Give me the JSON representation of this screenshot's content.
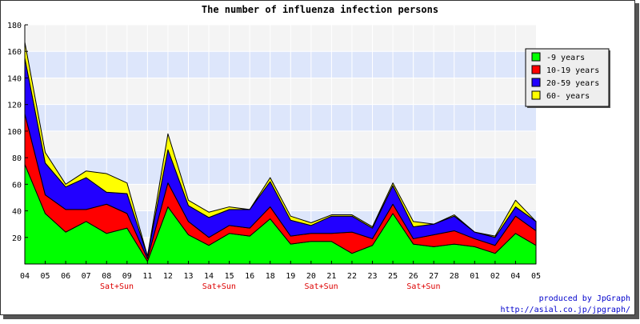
{
  "chart_data": {
    "type": "area",
    "stacked": true,
    "title": "The number of influenza infection persons",
    "xlabel": "",
    "ylabel": "",
    "ylim": [
      0,
      180
    ],
    "yticks": [
      20,
      40,
      60,
      80,
      100,
      120,
      140,
      160,
      180
    ],
    "grid": true,
    "legend_position": "top-right",
    "categories": [
      "04",
      "05",
      "06",
      "07",
      "08",
      "09",
      "11",
      "12",
      "13",
      "14",
      "15",
      "16",
      "18",
      "19",
      "20",
      "21",
      "22",
      "23",
      "25",
      "26",
      "27",
      "28",
      "01",
      "02",
      "04",
      "05"
    ],
    "weekend_labels": [
      {
        "index": 4,
        "label": "Sat+Sun"
      },
      {
        "index": 9,
        "label": "Sat+Sun"
      },
      {
        "index": 14,
        "label": "Sat+Sun"
      },
      {
        "index": 19,
        "label": "Sat+Sun"
      }
    ],
    "series": [
      {
        "name": "-9 years",
        "color": "#00ff00",
        "values": [
          75,
          38,
          24,
          32,
          23,
          27,
          2,
          43,
          22,
          14,
          23,
          21,
          34,
          15,
          17,
          17,
          8,
          14,
          38,
          15,
          13,
          15,
          13,
          8,
          23,
          14
        ]
      },
      {
        "name": "10-19 years",
        "color": "#ff0000",
        "values": [
          38,
          14,
          17,
          9,
          22,
          11,
          2,
          18,
          10,
          6,
          6,
          6,
          9,
          6,
          6,
          6,
          16,
          5,
          7,
          4,
          9,
          10,
          6,
          6,
          13,
          11
        ]
      },
      {
        "name": "20-59 years",
        "color": "#2200ff",
        "values": [
          42,
          24,
          17,
          24,
          9,
          15,
          2,
          25,
          12,
          15,
          12,
          14,
          19,
          12,
          6,
          13,
          12,
          8,
          14,
          9,
          8,
          11,
          5,
          6,
          7,
          7
        ]
      },
      {
        "name": "60- years",
        "color": "#ffff00",
        "values": [
          12,
          8,
          2,
          5,
          14,
          8,
          0,
          12,
          4,
          4,
          2,
          0,
          3,
          3,
          2,
          1,
          1,
          1,
          2,
          4,
          0,
          1,
          0,
          1,
          5,
          0
        ]
      }
    ]
  },
  "footer": {
    "line1": "produced by JpGraph",
    "line2": "http://asial.co.jp/jpgraph/"
  }
}
